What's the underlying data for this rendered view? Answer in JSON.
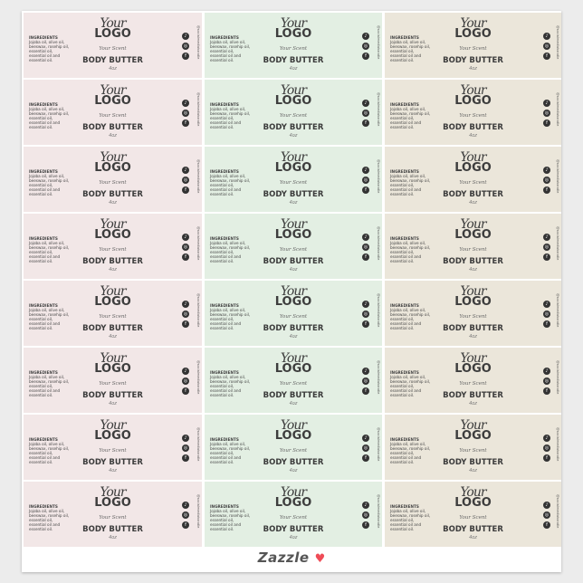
{
  "label": {
    "ingredients_title": "INGREDIENTS",
    "ingredients_text": "Jojoba oil, olive oil, beeswax, rosehip oil, essential oil, essential oil and essential oil.",
    "logo_script": "Your",
    "logo_text": "LOGO",
    "scent": "Your Scent",
    "product": "BODY BUTTER",
    "size": "4oz",
    "handle": "@socialmediahandle",
    "icons": [
      "tiktok-icon",
      "instagram-icon",
      "facebook-icon"
    ]
  },
  "columns": [
    {
      "name": "pink",
      "color": "#f2e7e7"
    },
    {
      "name": "green",
      "color": "#e3efe3"
    },
    {
      "name": "beige",
      "color": "#ebe6da"
    }
  ],
  "rows": 8,
  "footer": {
    "brand": "Zazzle",
    "heart_color": "#ef4c57"
  }
}
